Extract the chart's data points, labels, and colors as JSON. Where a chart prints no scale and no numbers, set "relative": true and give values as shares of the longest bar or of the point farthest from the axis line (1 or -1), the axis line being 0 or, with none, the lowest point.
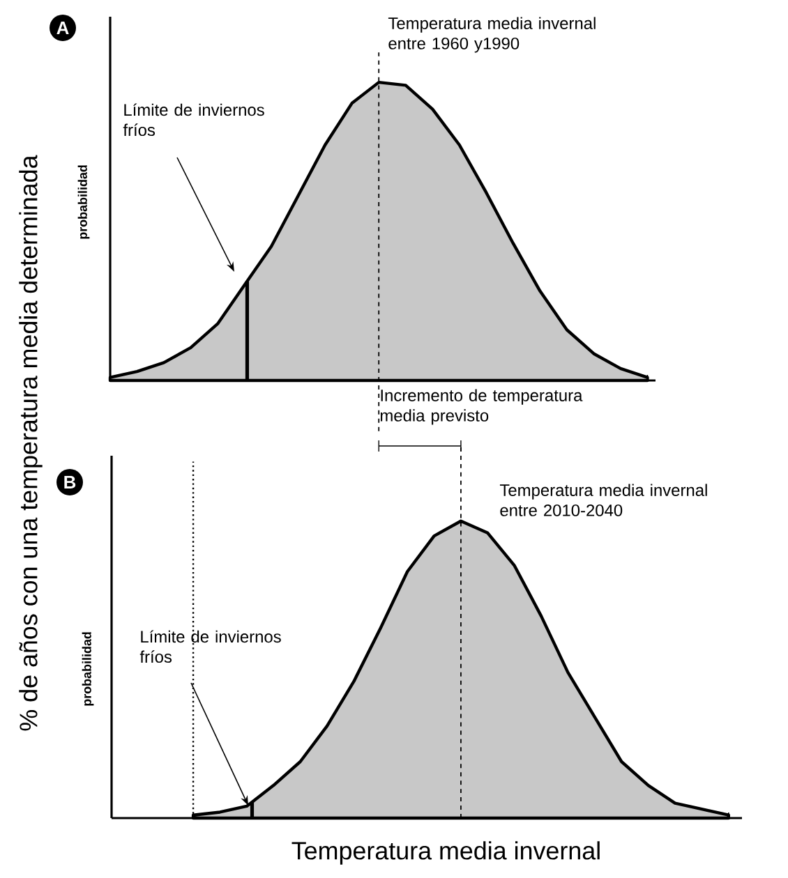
{
  "chart_data": [
    {
      "type": "area",
      "title": "A",
      "ylabel": "probabilidad",
      "relative": true,
      "color": "#c8c8c8",
      "categories": [
        null,
        null,
        null,
        null,
        null,
        null,
        null,
        null,
        null,
        null,
        null,
        null,
        null,
        null,
        null,
        null,
        null,
        null,
        null,
        null,
        null
      ],
      "values": [
        0.01,
        0.03,
        0.06,
        0.11,
        0.19,
        0.32,
        0.45,
        0.62,
        0.79,
        0.93,
        1.0,
        0.99,
        0.91,
        0.79,
        0.63,
        0.46,
        0.3,
        0.17,
        0.09,
        0.04,
        0.01
      ],
      "annotations": [
        "% de años con una temperatura media determinada",
        "Límite de inviernos fríos",
        "Temperatura media invernal entre 1960 y1990"
      ]
    },
    {
      "type": "area",
      "title": "B",
      "ylabel": "probabilidad",
      "xlabel": "Temperatura media invernal",
      "relative": true,
      "color": "#c8c8c8",
      "categories": [
        null,
        null,
        null,
        null,
        null,
        null,
        null,
        null,
        null,
        null,
        null,
        null,
        null,
        null,
        null,
        null,
        null,
        null,
        null,
        null,
        null
      ],
      "values": [
        0.01,
        0.02,
        0.04,
        0.11,
        0.19,
        0.31,
        0.46,
        0.64,
        0.83,
        0.95,
        1.0,
        0.96,
        0.85,
        0.68,
        0.49,
        0.34,
        0.19,
        0.11,
        0.05,
        0.03,
        0.01
      ],
      "annotations": [
        "Límite de inviernos fríos",
        "Temperatura media invernal entre 2010-2040",
        "Incremento de temperatura media previsto"
      ]
    }
  ]
}
